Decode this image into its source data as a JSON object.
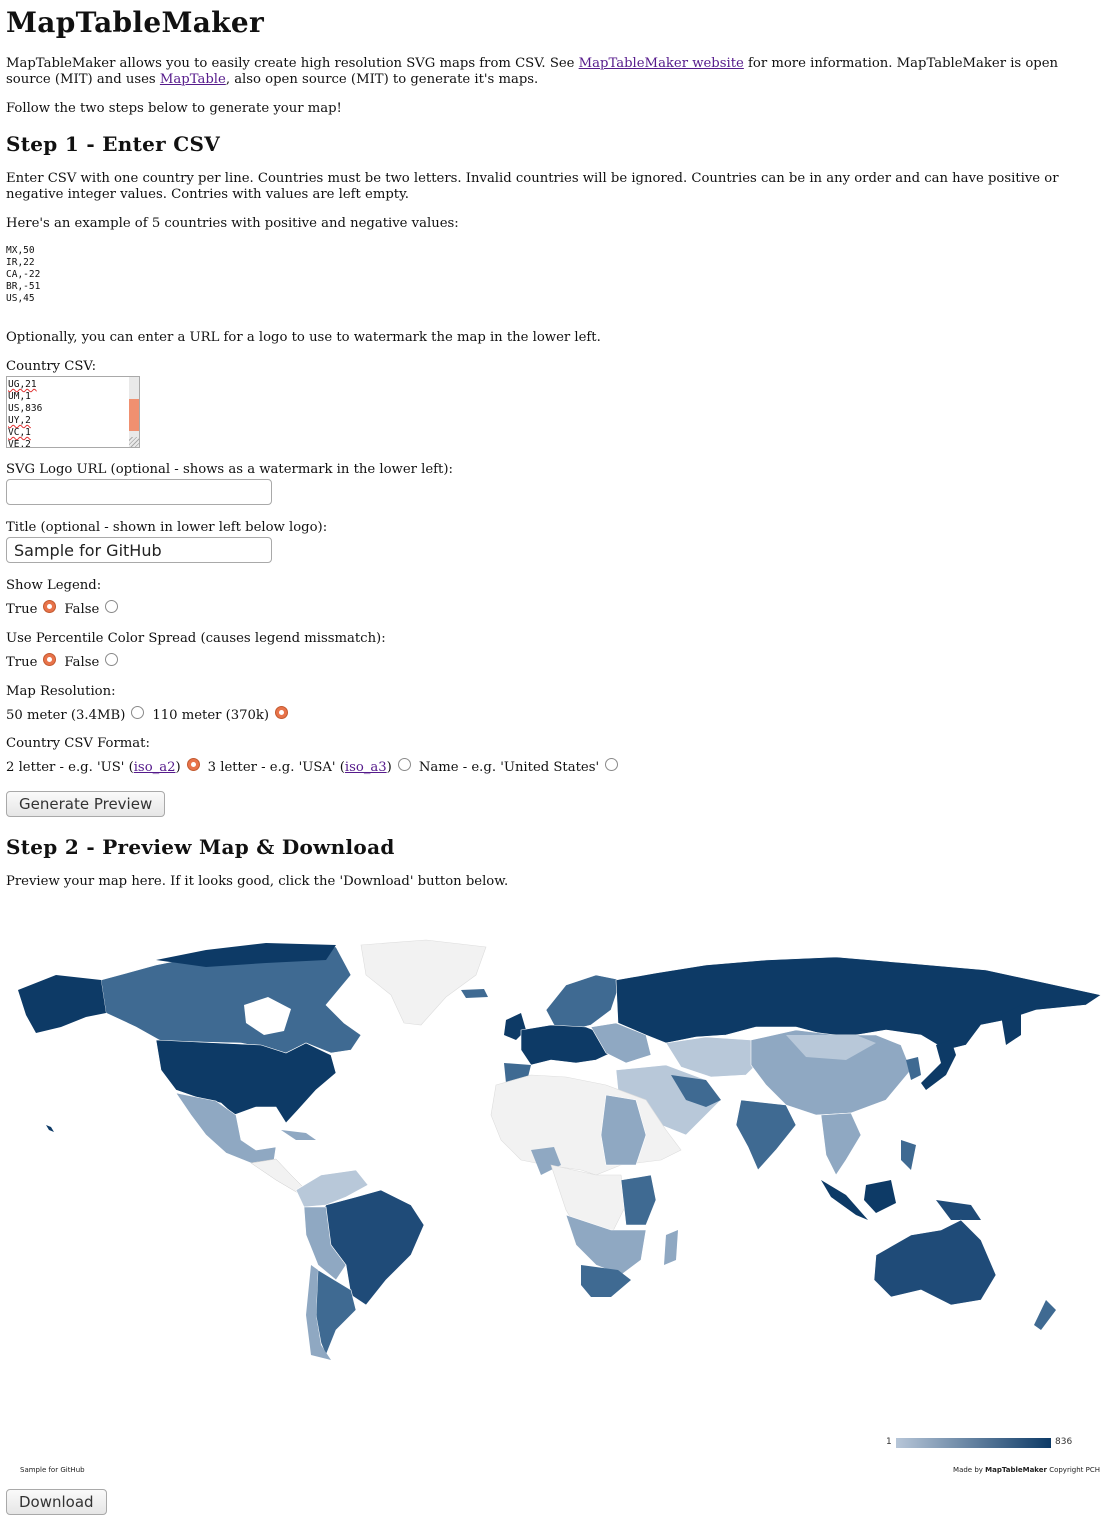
{
  "header": {
    "title": "MapTableMaker"
  },
  "intro": {
    "t1": "MapTableMaker allows you to easily create high resolution SVG maps from CSV. See ",
    "link1": "MapTableMaker website",
    "t2": " for more information. MapTableMaker is open source (MIT) and uses ",
    "link2": "MapTable",
    "t3": ", also open source (MIT) to generate it's maps.",
    "follow": "Follow the two steps below to generate your map!"
  },
  "step1": {
    "heading": "Step 1 - Enter CSV",
    "desc": "Enter CSV with one country per line. Countries must be two letters. Invalid countries will be ignored. Countries can be in any order and can have positive or negative integer values. Contries with values are left empty.",
    "example_intro": "Here's an example of 5 countries with positive and negative values:",
    "example_lines": [
      "MX,50",
      "IR,22",
      "CA,-22",
      "BR,-51",
      "US,45"
    ],
    "logo_note": "Optionally, you can enter a URL for a logo to use to watermark the map in the lower left."
  },
  "form": {
    "csv_label": "Country CSV:",
    "csv_lines": [
      "UG,21",
      "UM,1",
      "US,836",
      "UY,2",
      "VC,1",
      "VE,2"
    ],
    "logo_label": "SVG Logo URL (optional - shows as a watermark in the lower left):",
    "logo_value": "",
    "title_label": "Title (optional - shown in lower left below logo):",
    "title_value": "Sample for GitHub",
    "legend_label": "Show Legend:",
    "legend_true": "True",
    "legend_false": "False",
    "percentile_label": "Use Percentile Color Spread (causes legend missmatch):",
    "percentile_true": "True",
    "percentile_false": "False",
    "resolution_label": "Map Resolution:",
    "res_50": "50 meter (3.4MB)",
    "res_110": "110 meter (370k)",
    "format_label": "Country CSV Format:",
    "fmt2_a": "2 letter - e.g. 'US' (",
    "fmt2_link": "iso_a2",
    "fmt2_b": ")",
    "fmt3_a": "3 letter - e.g. 'USA' (",
    "fmt3_link": "iso_a3",
    "fmt3_b": ")",
    "fmt_name": "Name - e.g. 'United States'",
    "generate_button": "Generate Preview"
  },
  "step2": {
    "heading": "Step 2 - Preview Map & Download",
    "desc": "Preview your map here. If it looks good, click the 'Download' button below."
  },
  "map": {
    "legend_min": "1",
    "legend_max": "836",
    "title": "Sample for GitHub",
    "credit_a": "Made by ",
    "credit_brand": "MapTableMaker",
    "credit_b": " Copyright PCH",
    "colors": {
      "dark": "#0d3a66",
      "mid": "#3f6a92",
      "light": "#8fa8c2",
      "pale": "#b8c8d9",
      "none": "#f2f2f2"
    }
  },
  "download_button": "Download"
}
